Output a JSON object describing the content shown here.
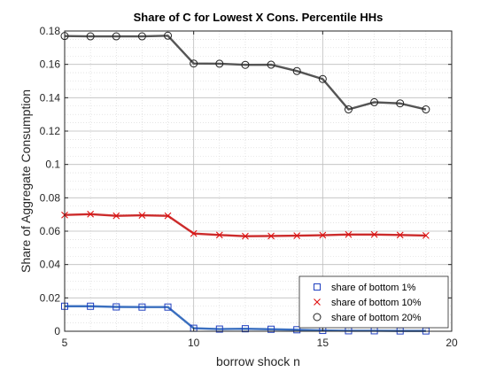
{
  "chart_data": {
    "type": "line",
    "title": "Share of C for Lowest X Cons. Percentile HHs",
    "xlabel": "borrow shock n",
    "ylabel": "Share of Aggregate Consumption",
    "xlim": [
      5,
      20
    ],
    "ylim": [
      0,
      0.18
    ],
    "xticks": [
      5,
      10,
      15,
      20
    ],
    "yticks": [
      0,
      0.02,
      0.04,
      0.06,
      0.08,
      0.1,
      0.12,
      0.14,
      0.16,
      0.18
    ],
    "xtick_labels": [
      "5",
      "10",
      "15",
      "20"
    ],
    "ytick_labels": [
      "0",
      "0.02",
      "0.04",
      "0.06",
      "0.08",
      "0.1",
      "0.12",
      "0.14",
      "0.16",
      "0.18"
    ],
    "grid": true,
    "minor_grid": true,
    "legend_position": "bottom-right",
    "x": [
      5,
      6,
      7,
      8,
      9,
      10,
      11,
      12,
      13,
      14,
      15,
      16,
      17,
      18,
      19
    ],
    "series": [
      {
        "name": "share of bottom 1%",
        "marker": "square",
        "line_color": "#3a6fbf",
        "marker_color": "#1f3fbf",
        "values": [
          0.015,
          0.015,
          0.0146,
          0.0145,
          0.0145,
          0.0018,
          0.0013,
          0.0015,
          0.0012,
          0.0009,
          0.0005,
          0.0003,
          0.0003,
          0.0002,
          0.0002
        ]
      },
      {
        "name": "share of bottom 10%",
        "marker": "x",
        "line_color": "#cc2b2b",
        "marker_color": "#e01010",
        "values": [
          0.0697,
          0.0702,
          0.0692,
          0.0695,
          0.0692,
          0.0586,
          0.0577,
          0.057,
          0.0571,
          0.0573,
          0.0576,
          0.058,
          0.058,
          0.0577,
          0.0574
        ]
      },
      {
        "name": "share of bottom 20%",
        "marker": "circle",
        "line_color": "#555555",
        "marker_color": "#222222",
        "values": [
          0.177,
          0.1768,
          0.1768,
          0.1768,
          0.1772,
          0.1605,
          0.1604,
          0.1597,
          0.1598,
          0.156,
          0.1512,
          0.133,
          0.1373,
          0.1366,
          0.133
        ]
      }
    ]
  }
}
